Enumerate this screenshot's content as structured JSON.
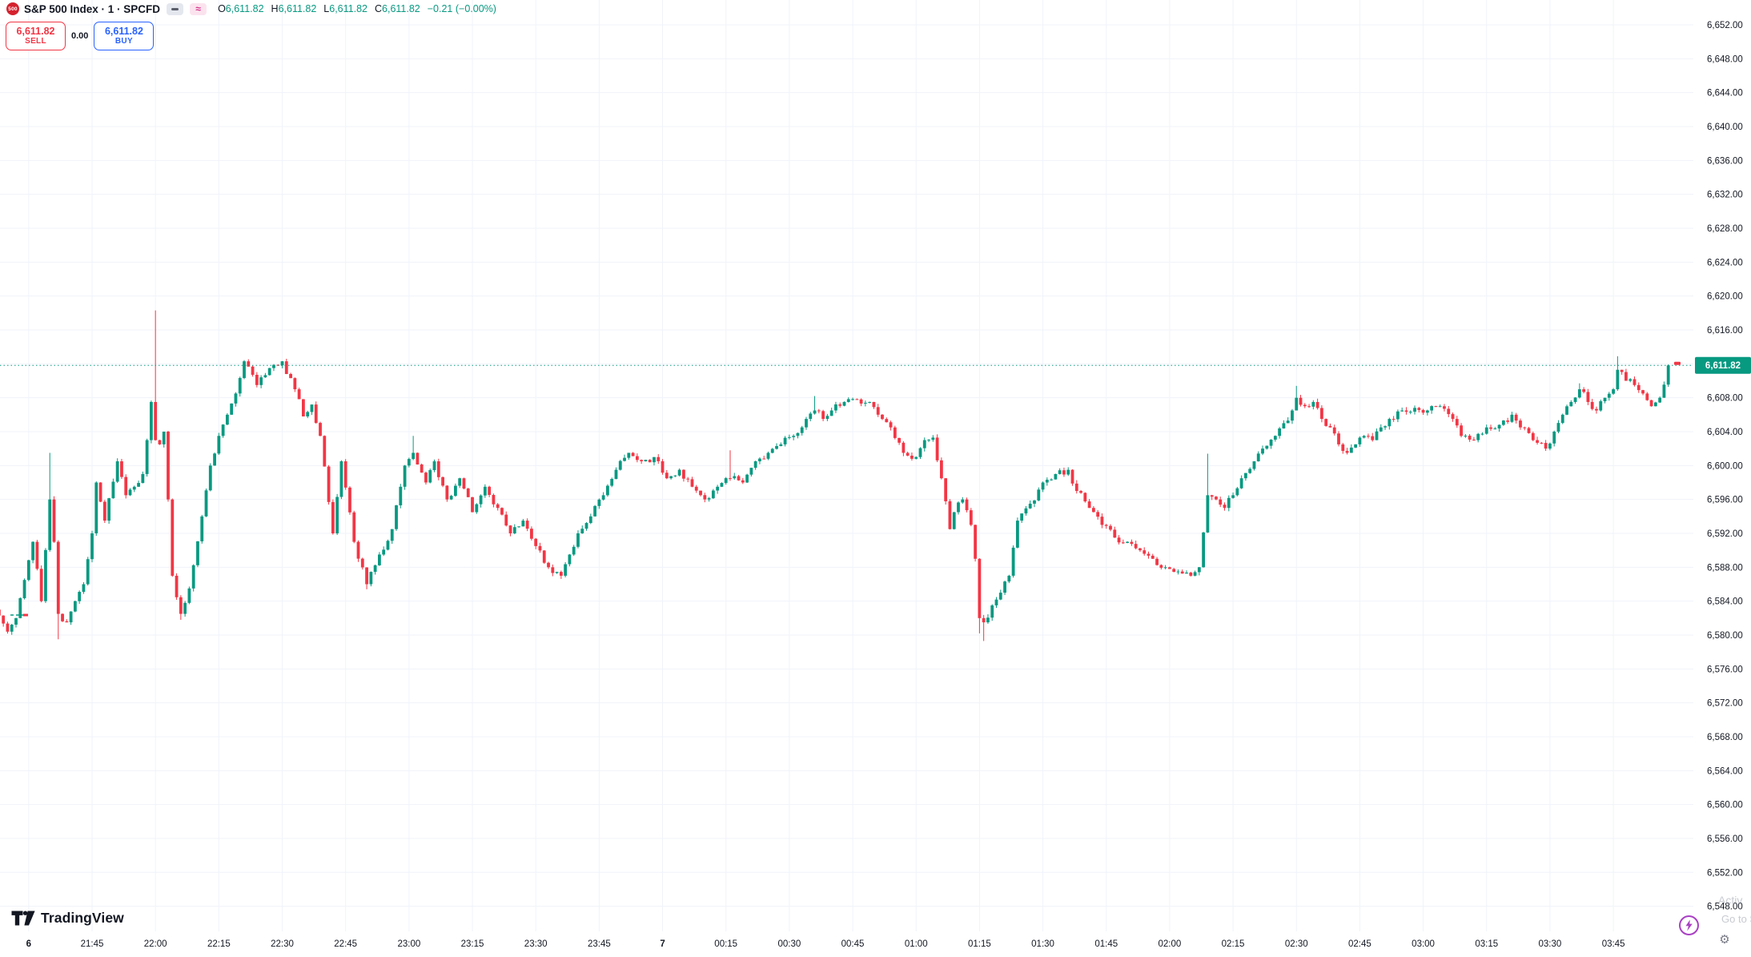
{
  "header": {
    "symbol_logo": "500",
    "title": "S&P 500 Index · 1 · SPCFD",
    "chips": {
      "minimize_icon": "minus-dash",
      "wave_icon": "≈"
    },
    "ohlc": {
      "o_label": "O",
      "o": "6,611.82",
      "h_label": "H",
      "h": "6,611.82",
      "l_label": "L",
      "l": "6,611.82",
      "c_label": "C",
      "c": "6,611.82",
      "change": "−0.21 (−0.00%)"
    }
  },
  "trade_panel": {
    "sell_price": "6,611.82",
    "sell_label": "SELL",
    "spread": "0.00",
    "buy_price": "6,611.82",
    "buy_label": "BUY"
  },
  "footer": {
    "logo_text": "TradingView"
  },
  "watermark": {
    "line1": "Activ",
    "line2": "Go to S"
  },
  "colors": {
    "up": "#089981",
    "down": "#f23645",
    "grid": "#f0f3fa",
    "axis_text": "#131722",
    "badge_bg": "#089981",
    "badge_text": "#ffffff",
    "price_line": "#089981"
  },
  "chart_data": {
    "type": "candlestick",
    "symbol": "S&P 500 Index (SPCFD)",
    "interval": "1",
    "last_price": 6611.82,
    "session_high": 6618.3,
    "session_low": 6579.3,
    "price_axis": {
      "min": 6548,
      "max": 6652,
      "step": 4
    },
    "current_price_label": "6,611.82",
    "time_ticks": [
      {
        "time": "21:30",
        "label": "6",
        "bold": true
      },
      {
        "time": "21:45",
        "label": "21:45"
      },
      {
        "time": "22:00",
        "label": "22:00"
      },
      {
        "time": "22:15",
        "label": "22:15"
      },
      {
        "time": "22:30",
        "label": "22:30"
      },
      {
        "time": "22:45",
        "label": "22:45"
      },
      {
        "time": "23:00",
        "label": "23:00"
      },
      {
        "time": "23:15",
        "label": "23:15"
      },
      {
        "time": "23:30",
        "label": "23:30"
      },
      {
        "time": "23:45",
        "label": "23:45"
      },
      {
        "time": "00:00",
        "label": "7",
        "bold": true
      },
      {
        "time": "00:15",
        "label": "00:15"
      },
      {
        "time": "00:30",
        "label": "00:30"
      },
      {
        "time": "00:45",
        "label": "00:45"
      },
      {
        "time": "01:00",
        "label": "01:00"
      },
      {
        "time": "01:15",
        "label": "01:15"
      },
      {
        "time": "01:30",
        "label": "01:30"
      },
      {
        "time": "01:45",
        "label": "01:45"
      },
      {
        "time": "02:00",
        "label": "02:00"
      },
      {
        "time": "02:15",
        "label": "02:15"
      },
      {
        "time": "02:30",
        "label": "02:30"
      },
      {
        "time": "02:45",
        "label": "02:45"
      },
      {
        "time": "03:00",
        "label": "03:00"
      },
      {
        "time": "03:15",
        "label": "03:15"
      },
      {
        "time": "03:30",
        "label": "03:30"
      },
      {
        "time": "03:45",
        "label": "03:45"
      }
    ],
    "anchors": [
      [
        "21:23",
        6582.3
      ],
      [
        "21:25",
        6580.4
      ],
      [
        "21:27",
        6582.0
      ],
      [
        "21:29",
        6586.5
      ],
      [
        "21:31",
        6591.0
      ],
      [
        "21:33",
        6584.0
      ],
      [
        "21:35",
        6596.0
      ],
      [
        "21:36",
        6591.0
      ],
      [
        "21:37",
        6582.5
      ],
      [
        "21:39",
        6581.5
      ],
      [
        "21:41",
        6584.0
      ],
      [
        "21:43",
        6586.0
      ],
      [
        "21:45",
        6592.0
      ],
      [
        "21:46",
        6598.0
      ],
      [
        "21:48",
        6593.5
      ],
      [
        "21:51",
        6600.5
      ],
      [
        "21:53",
        6596.5
      ],
      [
        "21:55",
        6597.5
      ],
      [
        "21:57",
        6599.0
      ],
      [
        "21:58",
        6603.0
      ],
      [
        "21:59",
        6607.5
      ],
      [
        "22:00",
        6603.0
      ],
      [
        "22:01",
        6602.5
      ],
      [
        "22:02",
        6604.0
      ],
      [
        "22:03",
        6596.0
      ],
      [
        "22:04",
        6587.0
      ],
      [
        "22:06",
        6582.5
      ],
      [
        "22:08",
        6585.5
      ],
      [
        "22:11",
        6594.0
      ],
      [
        "22:13",
        6600.0
      ],
      [
        "22:15",
        6603.5
      ],
      [
        "22:17",
        6606.0
      ],
      [
        "22:19",
        6608.5
      ],
      [
        "22:21",
        6612.3
      ],
      [
        "22:24",
        6609.5
      ],
      [
        "22:27",
        6611.5
      ],
      [
        "22:30",
        6612.3
      ],
      [
        "22:33",
        6609.0
      ],
      [
        "22:35",
        6605.8
      ],
      [
        "22:37",
        6607.2
      ],
      [
        "22:39",
        6603.5
      ],
      [
        "22:42",
        6592.0
      ],
      [
        "22:44",
        6600.5
      ],
      [
        "22:47",
        6591.0
      ],
      [
        "22:50",
        6586.0
      ],
      [
        "22:53",
        6589.5
      ],
      [
        "22:56",
        6592.5
      ],
      [
        "22:59",
        6600.0
      ],
      [
        "23:01",
        6601.5
      ],
      [
        "23:04",
        6598.0
      ],
      [
        "23:06",
        6600.5
      ],
      [
        "23:09",
        6596.0
      ],
      [
        "23:12",
        6598.5
      ],
      [
        "23:15",
        6594.5
      ],
      [
        "23:18",
        6597.5
      ],
      [
        "23:21",
        6595.0
      ],
      [
        "23:24",
        6592.0
      ],
      [
        "23:27",
        6593.5
      ],
      [
        "23:30",
        6590.5
      ],
      [
        "23:33",
        6588.0
      ],
      [
        "23:36",
        6587.0
      ],
      [
        "23:38",
        6589.5
      ],
      [
        "23:40",
        6592.0
      ],
      [
        "23:43",
        6594.0
      ],
      [
        "23:46",
        6596.5
      ],
      [
        "23:49",
        6599.5
      ],
      [
        "23:52",
        6601.5
      ],
      [
        "23:55",
        6600.5
      ],
      [
        "23:58",
        6601.0
      ],
      [
        "00:01",
        6598.5
      ],
      [
        "00:04",
        6599.5
      ],
      [
        "00:07",
        6597.5
      ],
      [
        "00:10",
        6596.0
      ],
      [
        "00:13",
        6597.5
      ],
      [
        "00:16",
        6598.5
      ],
      [
        "00:19",
        6598.0
      ],
      [
        "00:22",
        6600.5
      ],
      [
        "00:25",
        6601.5
      ],
      [
        "00:28",
        6602.5
      ],
      [
        "00:31",
        6603.5
      ],
      [
        "00:34",
        6605.5
      ],
      [
        "00:36",
        6606.5
      ],
      [
        "00:38",
        6605.5
      ],
      [
        "00:40",
        6606.5
      ],
      [
        "00:43",
        6607.5
      ],
      [
        "00:46",
        6607.8
      ],
      [
        "00:49",
        6607.5
      ],
      [
        "00:51",
        6606.0
      ],
      [
        "00:54",
        6604.5
      ],
      [
        "00:57",
        6601.5
      ],
      [
        "01:00",
        6601.0
      ],
      [
        "01:02",
        6603.0
      ],
      [
        "01:04",
        6603.3
      ],
      [
        "01:06",
        6598.5
      ],
      [
        "01:08",
        6592.5
      ],
      [
        "01:09",
        6594.5
      ],
      [
        "01:11",
        6596.0
      ],
      [
        "01:13",
        6593.0
      ],
      [
        "01:14",
        6589.0
      ],
      [
        "01:15",
        6582.0
      ],
      [
        "01:16",
        6581.5
      ],
      [
        "01:18",
        6583.5
      ],
      [
        "01:20",
        6585.0
      ],
      [
        "01:22",
        6587.0
      ],
      [
        "01:24",
        6593.5
      ],
      [
        "01:27",
        6595.5
      ],
      [
        "01:30",
        6598.0
      ],
      [
        "01:33",
        6599.0
      ],
      [
        "01:36",
        6599.5
      ],
      [
        "01:38",
        6597.0
      ],
      [
        "01:41",
        6595.0
      ],
      [
        "01:44",
        6593.0
      ],
      [
        "01:47",
        6591.5
      ],
      [
        "01:50",
        6591.0
      ],
      [
        "01:53",
        6590.0
      ],
      [
        "01:56",
        6589.0
      ],
      [
        "01:59",
        6588.0
      ],
      [
        "02:02",
        6587.5
      ],
      [
        "02:05",
        6587.0
      ],
      [
        "02:07",
        6588.0
      ],
      [
        "02:09",
        6596.5
      ],
      [
        "02:11",
        6596.0
      ],
      [
        "02:13",
        6595.0
      ],
      [
        "02:15",
        6596.5
      ],
      [
        "02:17",
        6598.5
      ],
      [
        "02:20",
        6600.5
      ],
      [
        "02:22",
        6602.0
      ],
      [
        "02:25",
        6603.5
      ],
      [
        "02:27",
        6605.0
      ],
      [
        "02:29",
        6606.5
      ],
      [
        "02:30",
        6608.0
      ],
      [
        "02:32",
        6607.0
      ],
      [
        "02:34",
        6607.5
      ],
      [
        "02:36",
        6605.5
      ],
      [
        "02:38",
        6604.5
      ],
      [
        "02:40",
        6602.5
      ],
      [
        "02:42",
        6601.5
      ],
      [
        "02:44",
        6602.5
      ],
      [
        "02:46",
        6603.5
      ],
      [
        "02:48",
        6603.0
      ],
      [
        "02:50",
        6604.5
      ],
      [
        "02:52",
        6605.5
      ],
      [
        "02:55",
        6606.5
      ],
      [
        "02:58",
        6606.8
      ],
      [
        "03:01",
        6606.5
      ],
      [
        "03:04",
        6607.0
      ],
      [
        "03:07",
        6605.5
      ],
      [
        "03:09",
        6603.5
      ],
      [
        "03:12",
        6603.0
      ],
      [
        "03:15",
        6604.5
      ],
      [
        "03:18",
        6604.8
      ],
      [
        "03:21",
        6606.0
      ],
      [
        "03:23",
        6604.5
      ],
      [
        "03:26",
        6603.0
      ],
      [
        "03:29",
        6602.0
      ],
      [
        "03:31",
        6604.0
      ],
      [
        "03:33",
        6606.0
      ],
      [
        "03:35",
        6607.5
      ],
      [
        "03:37",
        6609.0
      ],
      [
        "03:39",
        6607.5
      ],
      [
        "03:41",
        6606.5
      ],
      [
        "03:43",
        6608.0
      ],
      [
        "03:45",
        6609.0
      ],
      [
        "03:46",
        6611.3
      ],
      [
        "03:48",
        6610.0
      ],
      [
        "03:50",
        6609.5
      ],
      [
        "03:52",
        6608.5
      ],
      [
        "03:54",
        6607.0
      ],
      [
        "03:56",
        6608.0
      ],
      [
        "03:58",
        6611.82
      ]
    ],
    "wick_overrides": [
      [
        "21:35",
        "high",
        6601.5
      ],
      [
        "21:37",
        "low",
        6579.5
      ],
      [
        "22:00",
        "high",
        6618.3
      ],
      [
        "22:06",
        "low",
        6581.8
      ],
      [
        "22:50",
        "low",
        6585.4
      ],
      [
        "23:01",
        "high",
        6603.5
      ],
      [
        "00:16",
        "high",
        6601.8
      ],
      [
        "00:36",
        "high",
        6608.2
      ],
      [
        "01:15",
        "low",
        6580.2
      ],
      [
        "01:16",
        "low",
        6579.3
      ],
      [
        "02:09",
        "high",
        6601.4
      ],
      [
        "02:30",
        "high",
        6609.4
      ],
      [
        "03:37",
        "high",
        6609.7
      ],
      [
        "03:46",
        "high",
        6612.9
      ]
    ]
  }
}
